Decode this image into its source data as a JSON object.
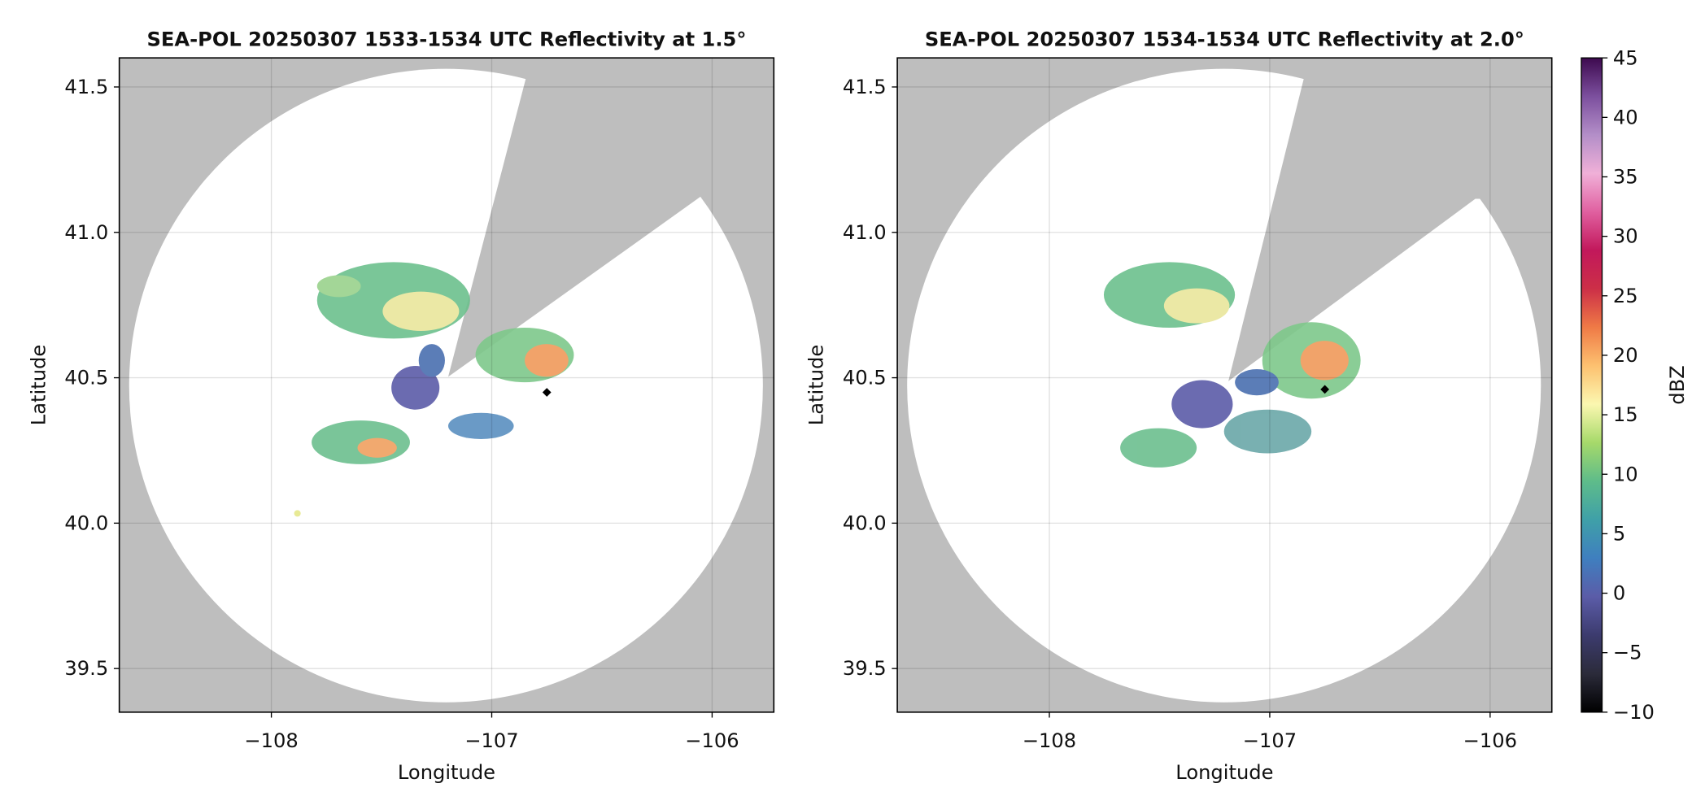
{
  "chart_data": [
    {
      "type": "map",
      "title": "SEA-POL 20250307 1533-1534 UTC Reflectivity at 1.5°",
      "xlabel": "Longitude",
      "ylabel": "Latitude",
      "xlim": [
        -108.69,
        -105.72
      ],
      "ylim": [
        39.35,
        41.6
      ],
      "xticks": [
        {
          "value": -108,
          "label": "−108"
        },
        {
          "value": -107,
          "label": "−107"
        },
        {
          "value": -106,
          "label": "−106"
        }
      ],
      "yticks": [
        39.5,
        {
          "value": 40,
          "label": "40.0"
        },
        40.5,
        {
          "value": 41,
          "label": "41.0"
        },
        41.5
      ],
      "grid": true,
      "marker": {
        "x": -106.75,
        "y": 40.45
      }
    },
    {
      "type": "map",
      "title": "SEA-POL 20250307 1534-1534 UTC Reflectivity at 2.0°",
      "xlabel": "Longitude",
      "ylabel": "Latitude",
      "xlim": [
        -108.69,
        -105.72
      ],
      "ylim": [
        39.35,
        41.6
      ],
      "xticks": [
        {
          "value": -108,
          "label": "−108"
        },
        {
          "value": -107,
          "label": "−107"
        },
        {
          "value": -106,
          "label": "−106"
        }
      ],
      "yticks": [
        39.5,
        {
          "value": 40,
          "label": "40.0"
        },
        40.5,
        {
          "value": 41,
          "label": "41.0"
        },
        41.5
      ],
      "grid": true,
      "marker": {
        "x": -106.75,
        "y": 40.46
      },
      "colorbar": {
        "label": "dBZ",
        "lim": [
          -10,
          45
        ],
        "ticks": [
          {
            "value": -10,
            "label": "−10"
          },
          {
            "value": -5,
            "label": "−5"
          },
          0,
          5,
          10,
          15,
          20,
          25,
          30,
          35,
          40,
          45
        ],
        "colors": [
          "#000000",
          "#2b2b3a",
          "#3c3b6e",
          "#5b5ca8",
          "#3f7fbf",
          "#3fa0a8",
          "#5ebc8a",
          "#a6d96a",
          "#fbf7b0",
          "#fdc170",
          "#ef7a46",
          "#cc2f47",
          "#c2185b",
          "#e060a0",
          "#f0b0d8",
          "#b38ec8",
          "#7c4f9e",
          "#3d0a4f"
        ]
      }
    }
  ]
}
